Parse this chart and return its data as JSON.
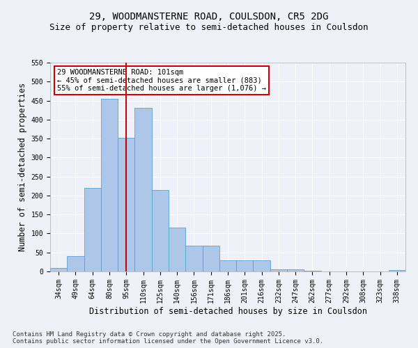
{
  "title_line1": "29, WOODMANSTERNE ROAD, COULSDON, CR5 2DG",
  "title_line2": "Size of property relative to semi-detached houses in Coulsdon",
  "xlabel": "Distribution of semi-detached houses by size in Coulsdon",
  "ylabel": "Number of semi-detached properties",
  "categories": [
    "34sqm",
    "49sqm",
    "64sqm",
    "80sqm",
    "95sqm",
    "110sqm",
    "125sqm",
    "140sqm",
    "156sqm",
    "171sqm",
    "186sqm",
    "201sqm",
    "216sqm",
    "232sqm",
    "247sqm",
    "262sqm",
    "277sqm",
    "292sqm",
    "308sqm",
    "323sqm",
    "338sqm"
  ],
  "values": [
    10,
    40,
    220,
    455,
    352,
    430,
    215,
    115,
    68,
    68,
    30,
    30,
    30,
    6,
    5,
    2,
    0,
    0,
    0,
    0,
    3
  ],
  "bar_color": "#aec6e8",
  "bar_edge_color": "#5a9fd4",
  "property_bin_index": 4,
  "vline_color": "#cc0000",
  "annotation_text": "29 WOODMANSTERNE ROAD: 101sqm\n← 45% of semi-detached houses are smaller (883)\n55% of semi-detached houses are larger (1,076) →",
  "annotation_box_color": "#ffffff",
  "annotation_box_edge": "#cc0000",
  "ylim": [
    0,
    550
  ],
  "yticks": [
    0,
    50,
    100,
    150,
    200,
    250,
    300,
    350,
    400,
    450,
    500,
    550
  ],
  "footnote": "Contains HM Land Registry data © Crown copyright and database right 2025.\nContains public sector information licensed under the Open Government Licence v3.0.",
  "background_color": "#eef2f8",
  "grid_color": "#ffffff",
  "title_fontsize": 10,
  "subtitle_fontsize": 9,
  "axis_label_fontsize": 8.5,
  "tick_fontsize": 7,
  "annotation_fontsize": 7.5,
  "footnote_fontsize": 6.5
}
